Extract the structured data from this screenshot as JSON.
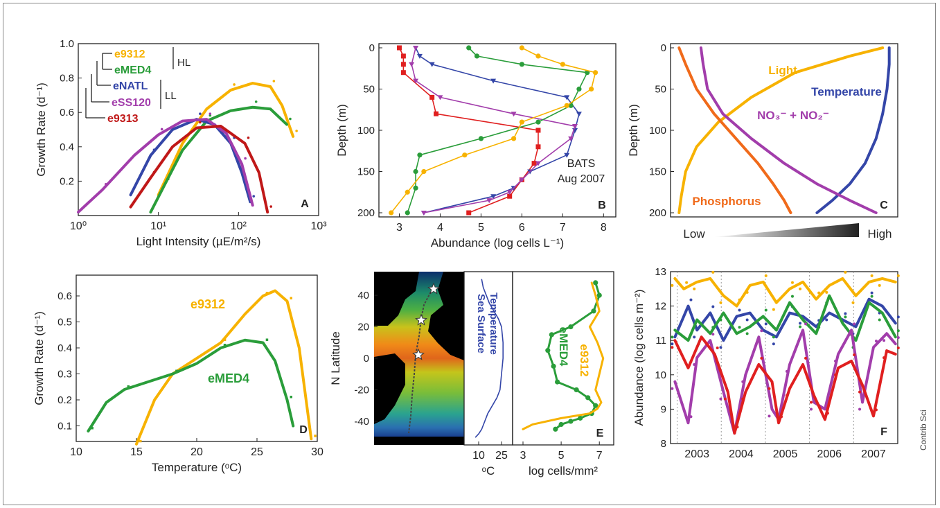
{
  "credit": "Contrib Sci",
  "colors": {
    "yellow": "#f7b200",
    "green": "#2a9d3a",
    "blue": "#3446a8",
    "purple": "#a23dab",
    "red": "#e01f1f",
    "orange": "#f06a1a",
    "darkred": "#c01818",
    "navy": "#3a3aa6",
    "violet": "#8a2be2",
    "teal": "#2aa38f"
  },
  "chart_data": [
    {
      "panel": "A",
      "type": "line",
      "xlabel": "Light Intensity (µE/m²/s)",
      "ylabel": "Growth Rate (d⁻¹)",
      "xscale": "log",
      "xlim": [
        1,
        1000
      ],
      "ylim": [
        0,
        1.0
      ],
      "xticks": [
        "10⁰",
        "10¹",
        "10²",
        "10³"
      ],
      "yticks": [
        "0.2",
        "0.4",
        "0.6",
        "0.8",
        "1.0"
      ],
      "legend": {
        "labels": [
          "e9312",
          "eMED4",
          "eNATL",
          "eSS120",
          "e9313"
        ],
        "groups": [
          "HL",
          "LL"
        ]
      },
      "series": [
        {
          "name": "e9312",
          "color": "#f7b200",
          "x": [
            10,
            20,
            40,
            80,
            150,
            250,
            350,
            480
          ],
          "y": [
            0.12,
            0.42,
            0.62,
            0.73,
            0.77,
            0.75,
            0.64,
            0.46
          ]
        },
        {
          "name": "eMED4",
          "color": "#2a9d3a",
          "x": [
            8,
            12,
            20,
            40,
            80,
            150,
            250,
            400
          ],
          "y": [
            0.02,
            0.18,
            0.38,
            0.55,
            0.61,
            0.63,
            0.62,
            0.53
          ]
        },
        {
          "name": "eNATL",
          "color": "#3446a8",
          "x": [
            4.5,
            8,
            15,
            30,
            50,
            80,
            110,
            140
          ],
          "y": [
            0.12,
            0.35,
            0.5,
            0.56,
            0.53,
            0.42,
            0.25,
            0.08
          ]
        },
        {
          "name": "eSS120",
          "color": "#a23dab",
          "x": [
            1,
            2,
            5,
            10,
            20,
            40,
            70,
            110,
            150
          ],
          "y": [
            0.02,
            0.15,
            0.35,
            0.47,
            0.55,
            0.56,
            0.48,
            0.3,
            0.06
          ]
        },
        {
          "name": "e9313",
          "color": "#c01818",
          "x": [
            4.5,
            8,
            15,
            30,
            60,
            120,
            180,
            230
          ],
          "y": [
            0.05,
            0.22,
            0.4,
            0.51,
            0.52,
            0.42,
            0.25,
            0.02
          ]
        }
      ]
    },
    {
      "panel": "B",
      "type": "line",
      "xlabel": "Abundance (log cells L⁻¹)",
      "ylabel": "Depth (m)",
      "annotation": [
        "BATS",
        "Aug 2007"
      ],
      "xlim": [
        2.5,
        8.3
      ],
      "ylim": [
        200,
        0
      ],
      "xticks": [
        3,
        4,
        5,
        6,
        7,
        8
      ],
      "yticks": [
        0,
        50,
        100,
        150,
        200
      ],
      "series": [
        {
          "color": "#e01f1f",
          "x": [
            3.0,
            3.1,
            3.1,
            3.1,
            3.8,
            3.9,
            6.4,
            6.4,
            6.3,
            6.0,
            5.7,
            4.7
          ],
          "y": [
            0,
            10,
            20,
            30,
            60,
            80,
            100,
            120,
            140,
            160,
            180,
            200
          ]
        },
        {
          "color": "#3446a8",
          "x": [
            3.4,
            3.5,
            3.8,
            5.3,
            7.1,
            7.4,
            7.3,
            7.1,
            6.2,
            5.8,
            5.3,
            3.6
          ],
          "y": [
            0,
            10,
            20,
            40,
            60,
            80,
            100,
            130,
            150,
            170,
            180,
            200
          ]
        },
        {
          "color": "#a23dab",
          "x": [
            3.4,
            3.3,
            3.4,
            4.0,
            5.8,
            7.3,
            7.2,
            6.4,
            6.0,
            5.7,
            5.2,
            3.6
          ],
          "y": [
            0,
            20,
            40,
            60,
            80,
            95,
            110,
            140,
            160,
            175,
            185,
            200
          ]
        },
        {
          "color": "#2a9d3a",
          "x": [
            4.7,
            4.9,
            6.0,
            7.6,
            7.4,
            7.2,
            6.4,
            5.0,
            3.5,
            3.4,
            3.4,
            3.2
          ],
          "y": [
            0,
            10,
            20,
            30,
            50,
            70,
            90,
            110,
            130,
            150,
            170,
            200
          ]
        },
        {
          "color": "#f7b200",
          "x": [
            6.0,
            6.4,
            7.0,
            7.8,
            7.7,
            7.1,
            6.0,
            5.8,
            4.6,
            3.6,
            3.2,
            2.8
          ],
          "y": [
            0,
            10,
            20,
            30,
            50,
            70,
            90,
            110,
            130,
            150,
            175,
            200
          ]
        }
      ]
    },
    {
      "panel": "C",
      "type": "line",
      "ylabel": "Depth (m)",
      "ylim": [
        200,
        0
      ],
      "yticks": [
        0,
        50,
        100,
        150,
        200
      ],
      "xlim": [
        0,
        1
      ],
      "gradient_labels": [
        "Low",
        "High"
      ],
      "curve_labels": [
        "Light",
        "Temperature",
        "NO₃⁻ + NO₂⁻",
        "Phosphorus"
      ],
      "series": [
        {
          "name": "Light",
          "color": "#f7b200",
          "x": [
            0.95,
            0.8,
            0.55,
            0.35,
            0.2,
            0.1,
            0.05,
            0.03,
            0.02
          ],
          "y": [
            0,
            10,
            30,
            60,
            90,
            120,
            150,
            180,
            200
          ]
        },
        {
          "name": "Temperature",
          "color": "#3446a8",
          "x": [
            0.98,
            0.98,
            0.97,
            0.95,
            0.92,
            0.87,
            0.8,
            0.72,
            0.65
          ],
          "y": [
            0,
            20,
            50,
            80,
            110,
            140,
            165,
            185,
            200
          ]
        },
        {
          "name": "NO₃⁻ + NO₂⁻",
          "color": "#a23dab",
          "x": [
            0.12,
            0.13,
            0.15,
            0.22,
            0.35,
            0.5,
            0.65,
            0.8,
            0.92
          ],
          "y": [
            0,
            20,
            50,
            80,
            110,
            140,
            165,
            185,
            200
          ]
        },
        {
          "name": "Phosphorus",
          "color": "#f06a1a",
          "x": [
            0.02,
            0.05,
            0.1,
            0.18,
            0.28,
            0.38,
            0.45,
            0.5,
            0.53
          ],
          "y": [
            0,
            20,
            50,
            80,
            110,
            140,
            165,
            185,
            200
          ]
        }
      ]
    },
    {
      "panel": "D",
      "type": "line",
      "xlabel": "Temperature (ᵒC)",
      "ylabel": "Growth Rate (d⁻¹)",
      "xlim": [
        10,
        30
      ],
      "ylim": [
        0.04,
        0.68
      ],
      "xticks": [
        10,
        15,
        20,
        25,
        30
      ],
      "yticks": [
        0.1,
        0.2,
        0.3,
        0.4,
        0.5,
        0.6
      ],
      "series": [
        {
          "name": "e9312",
          "color": "#f7b200",
          "x": [
            15,
            16.5,
            18,
            20,
            22,
            24,
            25.5,
            26.5,
            27.5,
            28.5,
            29.5
          ],
          "y": [
            0.03,
            0.2,
            0.3,
            0.36,
            0.42,
            0.53,
            0.6,
            0.62,
            0.58,
            0.4,
            0.05
          ]
        },
        {
          "name": "eMED4",
          "color": "#2a9d3a",
          "x": [
            11,
            12.5,
            14,
            16,
            18,
            20,
            22,
            24,
            25.5,
            26.5,
            27.5,
            28
          ],
          "y": [
            0.08,
            0.19,
            0.24,
            0.27,
            0.3,
            0.34,
            0.4,
            0.43,
            0.42,
            0.35,
            0.2,
            0.1
          ]
        }
      ]
    },
    {
      "panel": "E",
      "type": "line",
      "ylabel": "N Latitude",
      "ylim": [
        -55,
        55
      ],
      "yticks": [
        -40,
        -20,
        0,
        20,
        40
      ],
      "temperature": {
        "xlabel": "ᵒC",
        "xticks": [
          10,
          25
        ],
        "label": [
          "Sea Surface",
          "Temperature"
        ]
      },
      "abundance": {
        "xlabel": "log cells/mm²",
        "xticks": [
          3,
          5,
          7
        ],
        "labels": [
          "eMED4",
          "e9312"
        ]
      },
      "series": [
        {
          "name": "Sea Surface Temperature",
          "color": "#3446a8",
          "x": [
            12,
            13,
            15,
            17,
            20,
            23,
            25,
            26,
            26,
            25,
            24,
            22,
            19,
            16,
            14,
            12,
            10,
            8
          ],
          "y": [
            50,
            45,
            40,
            35,
            30,
            25,
            20,
            10,
            0,
            -10,
            -20,
            -25,
            -30,
            -35,
            -40,
            -45,
            -48,
            -50
          ]
        },
        {
          "name": "eMED4",
          "color": "#2a9d3a",
          "x": [
            6.8,
            7.0,
            6.7,
            5.5,
            4.5,
            4.3,
            4.6,
            4.8,
            5.8,
            6.4,
            6.8,
            6.6,
            6.0,
            5.5,
            5.0,
            4.7
          ],
          "y": [
            48,
            40,
            30,
            20,
            15,
            5,
            -5,
            -15,
            -20,
            -25,
            -30,
            -35,
            -38,
            -40,
            -42,
            -45
          ]
        },
        {
          "name": "e9312",
          "color": "#f7b200",
          "x": [
            6.6,
            6.8,
            7.0,
            6.5,
            6.9,
            7.2,
            7.0,
            6.8,
            7.1,
            6.9,
            6.5,
            5.0,
            3.5,
            3.0
          ],
          "y": [
            48,
            40,
            30,
            20,
            10,
            0,
            -10,
            -20,
            -28,
            -32,
            -35,
            -38,
            -42,
            -45
          ]
        }
      ]
    },
    {
      "panel": "F",
      "type": "line",
      "ylabel": "Abundance (log cells m⁻²)",
      "xlim": [
        2002.4,
        2007.55
      ],
      "ylim": [
        8,
        13
      ],
      "xticks": [
        "2003",
        "2004",
        "2005",
        "2006",
        "2007"
      ],
      "yticks": [
        8,
        9,
        10,
        11,
        12,
        13
      ],
      "series": [
        {
          "color": "#f7b200",
          "x": [
            2002.5,
            2002.7,
            2003.0,
            2003.3,
            2003.6,
            2003.9,
            2004.2,
            2004.5,
            2004.8,
            2005.1,
            2005.4,
            2005.7,
            2006.0,
            2006.3,
            2006.6,
            2006.9,
            2007.2,
            2007.5
          ],
          "y": [
            12.8,
            12.5,
            12.7,
            12.8,
            12.3,
            12.0,
            12.6,
            12.7,
            12.1,
            12.5,
            12.7,
            12.2,
            12.6,
            12.8,
            12.3,
            12.7,
            12.8,
            12.7
          ]
        },
        {
          "color": "#3446a8",
          "x": [
            2002.5,
            2002.8,
            2003.0,
            2003.3,
            2003.6,
            2003.9,
            2004.2,
            2004.5,
            2004.8,
            2005.1,
            2005.4,
            2005.7,
            2006.0,
            2006.3,
            2006.6,
            2006.9,
            2007.2,
            2007.5
          ],
          "y": [
            11.1,
            12.0,
            11.3,
            11.8,
            11.0,
            11.7,
            11.8,
            11.3,
            11.1,
            11.8,
            11.7,
            11.4,
            11.8,
            11.6,
            11.4,
            12.2,
            12.0,
            11.5
          ]
        },
        {
          "color": "#2a9d3a",
          "x": [
            2002.5,
            2002.8,
            2003.0,
            2003.3,
            2003.6,
            2003.9,
            2004.2,
            2004.5,
            2004.8,
            2005.1,
            2005.4,
            2005.7,
            2006.0,
            2006.3,
            2006.6,
            2006.9,
            2007.2,
            2007.5
          ],
          "y": [
            11.3,
            11.0,
            11.6,
            11.2,
            11.8,
            11.2,
            11.4,
            11.7,
            11.3,
            12.1,
            11.6,
            11.2,
            12.3,
            11.5,
            11.0,
            12.1,
            11.8,
            11.1
          ]
        },
        {
          "color": "#a23dab",
          "x": [
            2002.5,
            2002.8,
            2003.0,
            2003.3,
            2003.6,
            2003.85,
            2004.1,
            2004.4,
            2004.7,
            2004.85,
            2005.1,
            2005.4,
            2005.65,
            2005.9,
            2006.2,
            2006.5,
            2006.75,
            2007.0,
            2007.3,
            2007.5
          ],
          "y": [
            9.8,
            8.6,
            10.5,
            11.0,
            9.5,
            8.3,
            10.0,
            11.1,
            9.0,
            8.7,
            10.3,
            11.3,
            9.2,
            9.0,
            10.6,
            11.3,
            9.2,
            10.8,
            11.2,
            10.9
          ]
        },
        {
          "color": "#e01f1f",
          "x": [
            2002.5,
            2002.8,
            2003.1,
            2003.4,
            2003.7,
            2003.85,
            2004.1,
            2004.4,
            2004.7,
            2004.85,
            2005.1,
            2005.4,
            2005.65,
            2005.9,
            2006.2,
            2006.5,
            2006.75,
            2007.0,
            2007.3,
            2007.5
          ],
          "y": [
            11.0,
            10.2,
            11.1,
            10.6,
            9.5,
            8.3,
            9.5,
            10.3,
            9.8,
            8.6,
            9.6,
            10.3,
            9.4,
            8.7,
            10.2,
            10.4,
            9.7,
            8.8,
            10.7,
            10.6
          ]
        }
      ]
    }
  ]
}
